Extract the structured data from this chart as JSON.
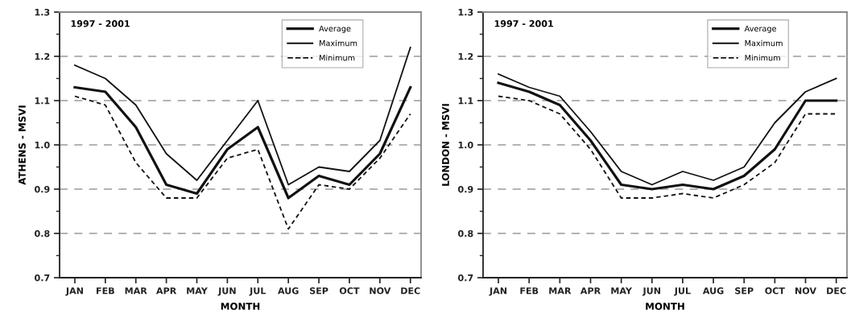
{
  "chart_data": [
    {
      "type": "line",
      "xlabel": "MONTH",
      "ylabel": "ATHENS - MSVI",
      "annotations": [
        "1997 - 2001"
      ],
      "categories": [
        "JAN",
        "FEB",
        "MAR",
        "APR",
        "MAY",
        "JUN",
        "JUL",
        "AUG",
        "SEP",
        "OCT",
        "NOV",
        "DEC"
      ],
      "series": [
        {
          "name": "Average",
          "color": "#111111",
          "line_style": "solid",
          "values": [
            1.13,
            1.12,
            1.04,
            0.91,
            0.89,
            0.99,
            1.04,
            0.88,
            0.93,
            0.91,
            0.98,
            1.13
          ]
        },
        {
          "name": "Maximum",
          "color": "#111111",
          "line_style": "solid",
          "values": [
            1.18,
            1.15,
            1.09,
            0.98,
            0.92,
            1.01,
            1.1,
            0.91,
            0.95,
            0.94,
            1.01,
            1.22
          ]
        },
        {
          "name": "Minimum",
          "color": "#111111",
          "line_style": "dashed",
          "values": [
            1.11,
            1.09,
            0.96,
            0.88,
            0.88,
            0.97,
            0.99,
            0.81,
            0.91,
            0.9,
            0.97,
            1.07
          ]
        }
      ],
      "ylim": [
        0.7,
        1.3
      ],
      "yticks": [
        0.7,
        {
          "value": 0.75,
          "label": null
        },
        0.8,
        {
          "value": 0.85,
          "label": null
        },
        0.9,
        {
          "value": 0.95,
          "label": null
        },
        {
          "value": 1.0,
          "label": "1.0"
        },
        {
          "value": 1.05,
          "label": null
        },
        1.1,
        {
          "value": 1.15,
          "label": null
        },
        1.2,
        {
          "value": 1.25,
          "label": null
        },
        1.3
      ],
      "grid": "y",
      "legend": "top right"
    },
    {
      "type": "line",
      "xlabel": "MONTH",
      "ylabel": "LONDON - MSVI",
      "annotations": [
        "1997 - 2001"
      ],
      "categories": [
        "JAN",
        "FEB",
        "MAR",
        "APR",
        "MAY",
        "JUN",
        "JUL",
        "AUG",
        "SEP",
        "OCT",
        "NOV",
        "DEC"
      ],
      "series": [
        {
          "name": "Average",
          "color": "#111111",
          "line_style": "solid",
          "values": [
            1.14,
            1.12,
            1.09,
            1.01,
            0.91,
            0.9,
            0.91,
            0.9,
            0.93,
            0.99,
            1.1,
            1.1
          ]
        },
        {
          "name": "Maximum",
          "color": "#111111",
          "line_style": "solid",
          "values": [
            1.16,
            1.13,
            1.11,
            1.03,
            0.94,
            0.91,
            0.94,
            0.92,
            0.95,
            1.05,
            1.12,
            1.15
          ]
        },
        {
          "name": "Minimum",
          "color": "#111111",
          "line_style": "dashed",
          "values": [
            1.11,
            1.1,
            1.07,
            0.99,
            0.88,
            0.88,
            0.89,
            0.88,
            0.91,
            0.96,
            1.07,
            1.07
          ]
        }
      ],
      "ylim": [
        0.7,
        1.3
      ],
      "yticks": [
        0.7,
        {
          "value": 0.75,
          "label": null
        },
        0.8,
        {
          "value": 0.85,
          "label": null
        },
        0.9,
        {
          "value": 0.95,
          "label": null
        },
        {
          "value": 1.0,
          "label": "1.0"
        },
        {
          "value": 1.05,
          "label": null
        },
        1.1,
        {
          "value": 1.15,
          "label": null
        },
        1.2,
        {
          "value": 1.25,
          "label": null
        },
        1.3
      ],
      "grid": "y",
      "legend": "top right"
    }
  ]
}
